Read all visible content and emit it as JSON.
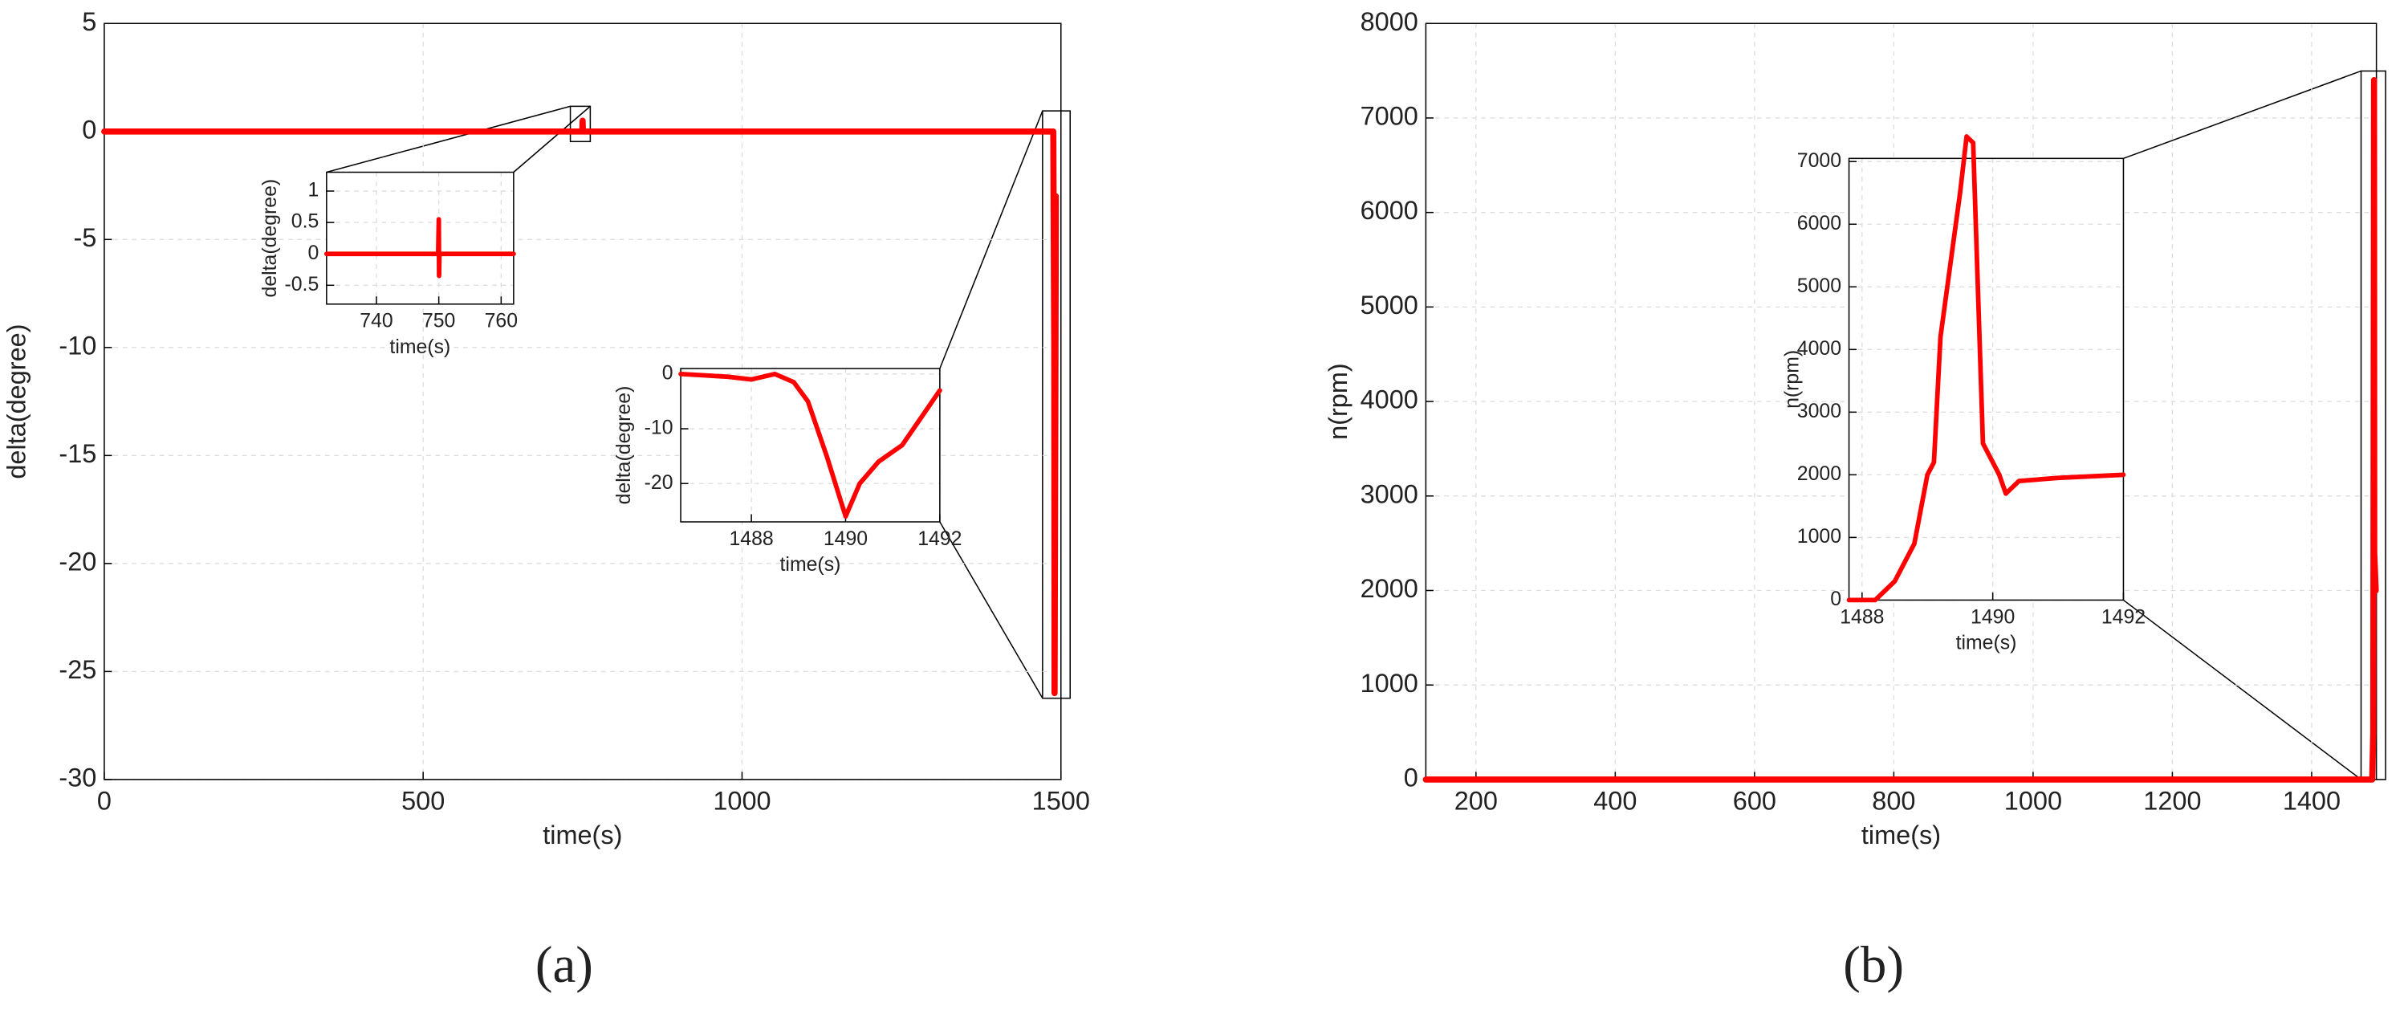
{
  "chart_data": [
    {
      "type": "line",
      "xlabel": "time(s)",
      "ylabel": "delta(degree)",
      "xlim": [
        0,
        1500
      ],
      "ylim": [
        -30,
        5
      ],
      "xticks": [
        0,
        500,
        1000,
        1500
      ],
      "yticks": [
        -30,
        -25,
        -20,
        -15,
        -10,
        -5,
        0,
        5
      ],
      "grid": true,
      "x": [
        0,
        749.5,
        750,
        750.5,
        1487,
        1488,
        1489.5,
        1490,
        1491,
        1492
      ],
      "series": [
        {
          "color": "#ff0000",
          "values": [
            0,
            0,
            0.5,
            0,
            0,
            0,
            -10,
            -26,
            -15,
            -3
          ]
        }
      ]
    },
    {
      "type": "line",
      "xlabel": "time(s)",
      "ylabel": "delta(degree)",
      "xlim": [
        732,
        762
      ],
      "ylim": [
        -0.8,
        1.3
      ],
      "xticks": [
        740,
        750,
        760
      ],
      "yticks": [
        -0.5,
        0,
        0.5,
        1
      ],
      "grid": true,
      "x": [
        732,
        749.9,
        750,
        750.05,
        750.1,
        762
      ],
      "series": [
        {
          "color": "#ff0000",
          "values": [
            0,
            0,
            0.55,
            -0.35,
            0,
            0
          ]
        }
      ]
    },
    {
      "type": "line",
      "xlabel": "time(s)",
      "ylabel": "delta(degree)",
      "xlim": [
        1486.5,
        1492
      ],
      "ylim": [
        -27,
        1
      ],
      "xticks": [
        1488,
        1490,
        1492
      ],
      "yticks": [
        -20,
        -10,
        0
      ],
      "grid": true,
      "x": [
        1486.5,
        1487.5,
        1488,
        1488.5,
        1488.9,
        1489.2,
        1489.6,
        1490,
        1490.3,
        1490.7,
        1491.2,
        1492
      ],
      "series": [
        {
          "color": "#ff0000",
          "values": [
            0,
            -0.5,
            -1,
            0,
            -1.5,
            -5,
            -15,
            -26,
            -20,
            -16,
            -13,
            -3
          ]
        }
      ]
    },
    {
      "type": "line",
      "xlabel": "time(s)",
      "ylabel": "n(rpm)",
      "xlim": [
        128,
        1493
      ],
      "ylim": [
        0,
        8000
      ],
      "xticks": [
        200,
        400,
        600,
        800,
        1000,
        1200,
        1400
      ],
      "yticks": [
        0,
        1000,
        2000,
        3000,
        4000,
        5000,
        6000,
        7000,
        8000
      ],
      "grid": true,
      "x": [
        128,
        1487,
        1488.5,
        1489.6,
        1489.9,
        1492
      ],
      "series": [
        {
          "color": "#ff0000",
          "values": [
            0,
            0,
            500,
            7400,
            2400,
            2000
          ]
        }
      ]
    },
    {
      "type": "line",
      "xlabel": "time(s)",
      "ylabel": "n(rpm)",
      "xlim": [
        1487.8,
        1492
      ],
      "ylim": [
        0,
        7050
      ],
      "xticks": [
        1488,
        1490,
        1492
      ],
      "yticks": [
        0,
        1000,
        2000,
        3000,
        4000,
        5000,
        6000,
        7000
      ],
      "grid": true,
      "x": [
        1487.8,
        1488.2,
        1488.5,
        1488.8,
        1489.0,
        1489.1,
        1489.2,
        1489.5,
        1489.6,
        1489.7,
        1489.85,
        1490.1,
        1490.2,
        1490.4,
        1491,
        1492
      ],
      "series": [
        {
          "color": "#ff0000",
          "values": [
            0,
            0,
            300,
            900,
            2000,
            2200,
            4200,
            6500,
            7400,
            7300,
            2500,
            2000,
            1700,
            1900,
            1950,
            2000
          ]
        }
      ]
    }
  ],
  "captions": [
    "(a)",
    "(b)"
  ]
}
